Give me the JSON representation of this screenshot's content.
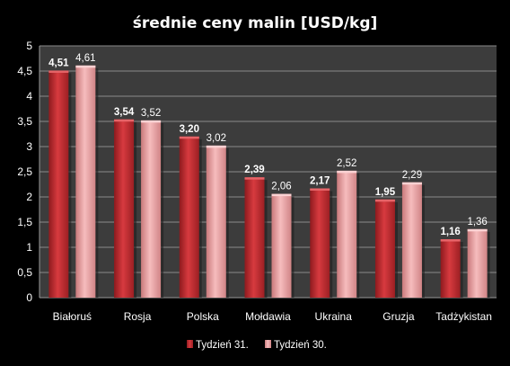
{
  "chart_data": {
    "type": "bar",
    "title": "średnie ceny malin [USD/kg]",
    "xlabel": "",
    "ylabel": "",
    "categories": [
      "Białoruś",
      "Rosja",
      "Polska",
      "Mołdawia",
      "Ukraina",
      "Gruzja",
      "Tadżykistan"
    ],
    "series": [
      {
        "name": "Tydzień 31.",
        "values": [
          4.51,
          3.54,
          3.2,
          2.39,
          2.17,
          1.95,
          1.16
        ],
        "labels": [
          "4,51",
          "3,54",
          "3,20",
          "2,39",
          "2,17",
          "1,95",
          "1,16"
        ],
        "color": "#c0282d",
        "label_bold": true
      },
      {
        "name": "Tydzień 30.",
        "values": [
          4.61,
          3.52,
          3.02,
          2.06,
          2.52,
          2.29,
          1.36
        ],
        "labels": [
          "4,61",
          "3,52",
          "3,02",
          "2,06",
          "2,52",
          "2,29",
          "1,36"
        ],
        "color": "#e89a9c",
        "label_bold": false
      }
    ],
    "ylim": [
      0,
      5
    ],
    "yticks": [
      0,
      0.5,
      1,
      1.5,
      2,
      2.5,
      3,
      3.5,
      4,
      4.5,
      5
    ],
    "ytick_labels": [
      "0",
      "0,5",
      "1",
      "1,5",
      "2",
      "2,5",
      "3",
      "3,5",
      "4",
      "4,5",
      "5"
    ],
    "grid": true,
    "legend_position": "bottom",
    "plot_background": "#3c3c3c",
    "background": "#000000"
  }
}
